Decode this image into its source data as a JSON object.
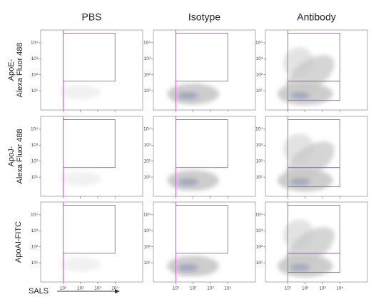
{
  "figure": {
    "columns": [
      "PBS",
      "Isotype",
      "Antibody"
    ],
    "rows": [
      {
        "label_lines": [
          "ApoE-",
          "Alexa Fluor 488"
        ]
      },
      {
        "label_lines": [
          "ApoJ-",
          "Alexa Fluor 488"
        ]
      },
      {
        "label_lines": [
          "ApoAI-FITC"
        ]
      }
    ],
    "log_scale": true,
    "xlim": [
      -0.3,
      5.6
    ],
    "ylim": [
      -0.2,
      4.8
    ],
    "xticks": [
      {
        "value": 1,
        "label": "10¹"
      },
      {
        "value": 2,
        "label": "10²"
      },
      {
        "value": 3,
        "label": "10³"
      },
      {
        "value": 4,
        "label": "10⁴"
      }
    ],
    "yticks": [
      {
        "value": 1,
        "label": "10¹"
      },
      {
        "value": 2,
        "label": "10²"
      },
      {
        "value": 3,
        "label": "10³"
      },
      {
        "value": 4,
        "label": "10⁴"
      }
    ],
    "x_axis_label": "SALS"
  }
}
